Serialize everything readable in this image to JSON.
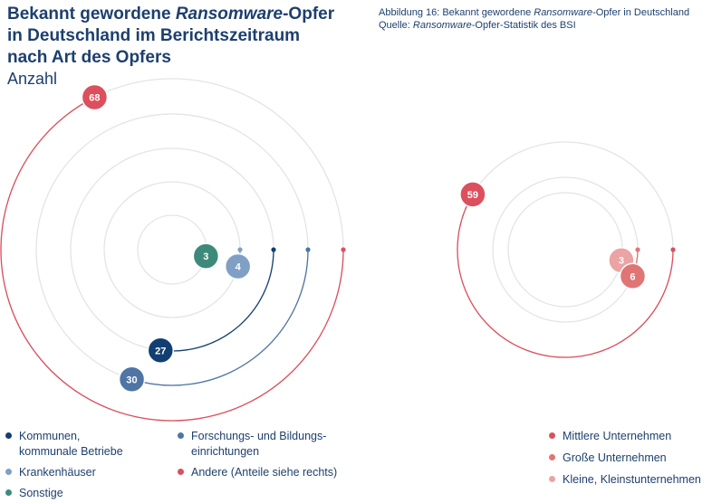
{
  "title": {
    "line1_a": "Bekannt gewordene ",
    "line1_italic": "Ransomware",
    "line1_b": "-Opfer",
    "line2": "in Deutschland im Berichtszeitraum",
    "line3": "nach Art des Opfers",
    "subtitle": "Anzahl"
  },
  "caption": {
    "line1_a": "Abbildung 16: Bekannt gewordene ",
    "line1_italic": "Ransomware",
    "line1_b": "-Opfer in Deutschland",
    "line2_a": "Quelle: ",
    "line2_italic": "Ransomware",
    "line2_b": "-Opfer-Statistik des BSI"
  },
  "chart_data": [
    {
      "type": "radial-bar",
      "title": "Bekannt gewordene Ransomware-Opfer nach Art des Opfers",
      "unit": "Anzahl",
      "max_value": 68,
      "series": [
        {
          "name": "Sonstige",
          "value": 3,
          "color": "#3e8a7a"
        },
        {
          "name": "Krankenhäuser",
          "value": 4,
          "color": "#7f9fc4"
        },
        {
          "name": "Kommunen, kommunale Betriebe",
          "value": 27,
          "color": "#123f72"
        },
        {
          "name": "Forschungs- und Bildungseinrichtungen",
          "value": 30,
          "color": "#4e75a4"
        },
        {
          "name": "Andere (Anteile siehe rechts)",
          "value": 68,
          "color": "#dc4f5d"
        }
      ]
    },
    {
      "type": "radial-bar",
      "title": "Andere (Anteile)",
      "unit": "Anzahl",
      "max_value": 68,
      "series": [
        {
          "name": "Kleine, Kleinstunternehmen",
          "value": 3,
          "color": "#eba3a3"
        },
        {
          "name": "Große Unternehmen",
          "value": 6,
          "color": "#e07576"
        },
        {
          "name": "Mittlere Unternehmen",
          "value": 59,
          "color": "#dc4f5d"
        }
      ]
    }
  ],
  "legend_left": [
    {
      "label_line1": "Kommunen,",
      "label_line2": "kommunale Betriebe",
      "color": "#123f72"
    },
    {
      "label_line1": "Krankenhäuser",
      "color": "#7f9fc4"
    },
    {
      "label_line1": "Sonstige",
      "color": "#3e8a7a"
    },
    {
      "label_line1": "Forschungs- und Bildungs-",
      "label_line2": "einrichtungen",
      "color": "#4e75a4"
    },
    {
      "label_line1": "Andere (Anteile siehe rechts)",
      "color": "#dc4f5d"
    }
  ],
  "legend_right": [
    {
      "label_line1": "Mittlere Unternehmen",
      "color": "#dc4f5d"
    },
    {
      "label_line1": "Große Unternehmen",
      "color": "#e07576"
    },
    {
      "label_line1": "Kleine, Kleinstunternehmen",
      "color": "#eba3a3"
    }
  ]
}
